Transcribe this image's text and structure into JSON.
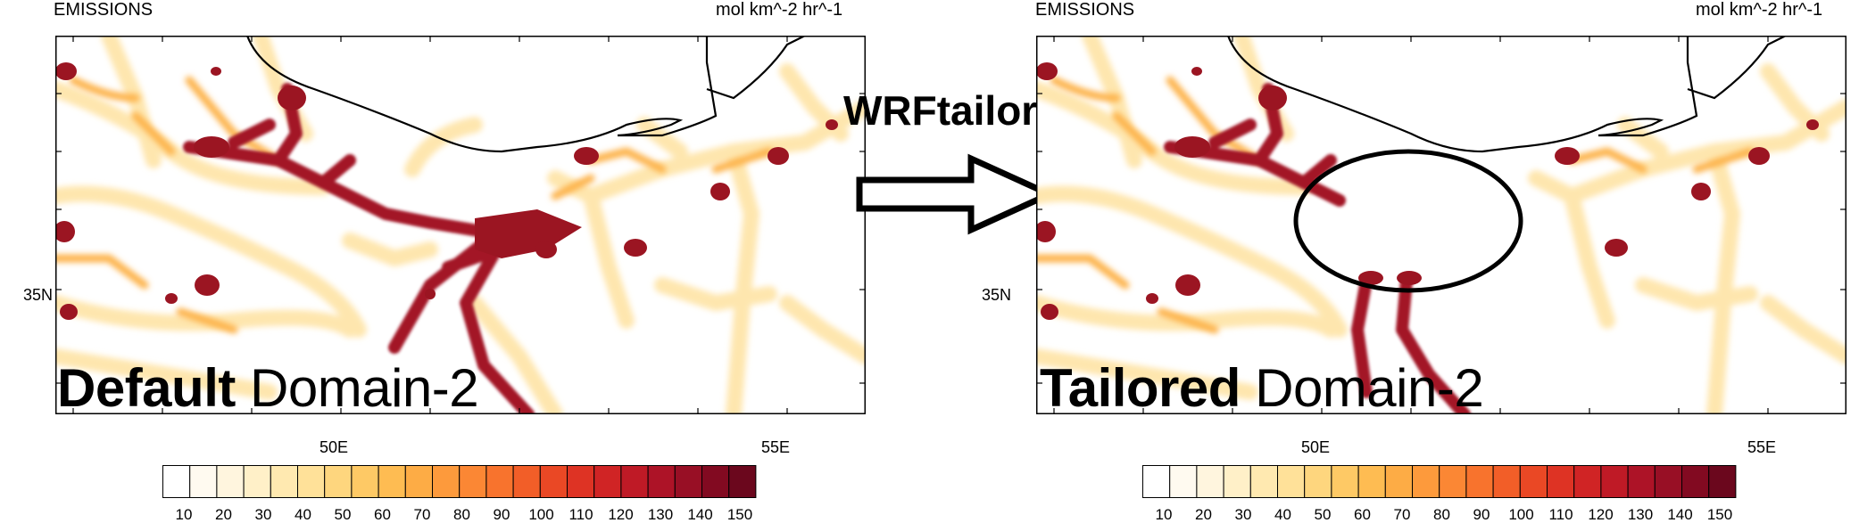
{
  "title_text": "WRFtailor",
  "colors": {
    "scale": [
      "#ffffff",
      "#fffaf0",
      "#fff5de",
      "#fff0c8",
      "#ffe9b0",
      "#ffe199",
      "#fed67e",
      "#fec965",
      "#febc52",
      "#fdac45",
      "#fd9a3c",
      "#fb8734",
      "#f8732d",
      "#f25e28",
      "#ea4825",
      "#de3324",
      "#d02425",
      "#bf1a26",
      "#ad1327",
      "#980f25",
      "#820a21",
      "#6b071d"
    ],
    "outline": "#000000"
  },
  "panels": [
    {
      "id": "default",
      "variable": "EMISSIONS",
      "units": "mol km^-2 hr^-1",
      "label_bold": "Default",
      "label_rest": " Domain-2",
      "lat_tick": "35N",
      "lon_ticks": [
        "50E",
        "55E"
      ],
      "highlight_ellipse": false
    },
    {
      "id": "tailored",
      "variable": "EMISSIONS",
      "units": "mol km^-2 hr^-1",
      "label_bold": "Tailored",
      "label_rest": " Domain-2",
      "lat_tick": "35N",
      "lon_ticks": [
        "50E",
        "55E"
      ],
      "highlight_ellipse": true
    }
  ],
  "colorbar_labels": [
    "10",
    "20",
    "30",
    "40",
    "50",
    "60",
    "70",
    "80",
    "90",
    "100",
    "110",
    "120",
    "130",
    "140",
    "150"
  ]
}
